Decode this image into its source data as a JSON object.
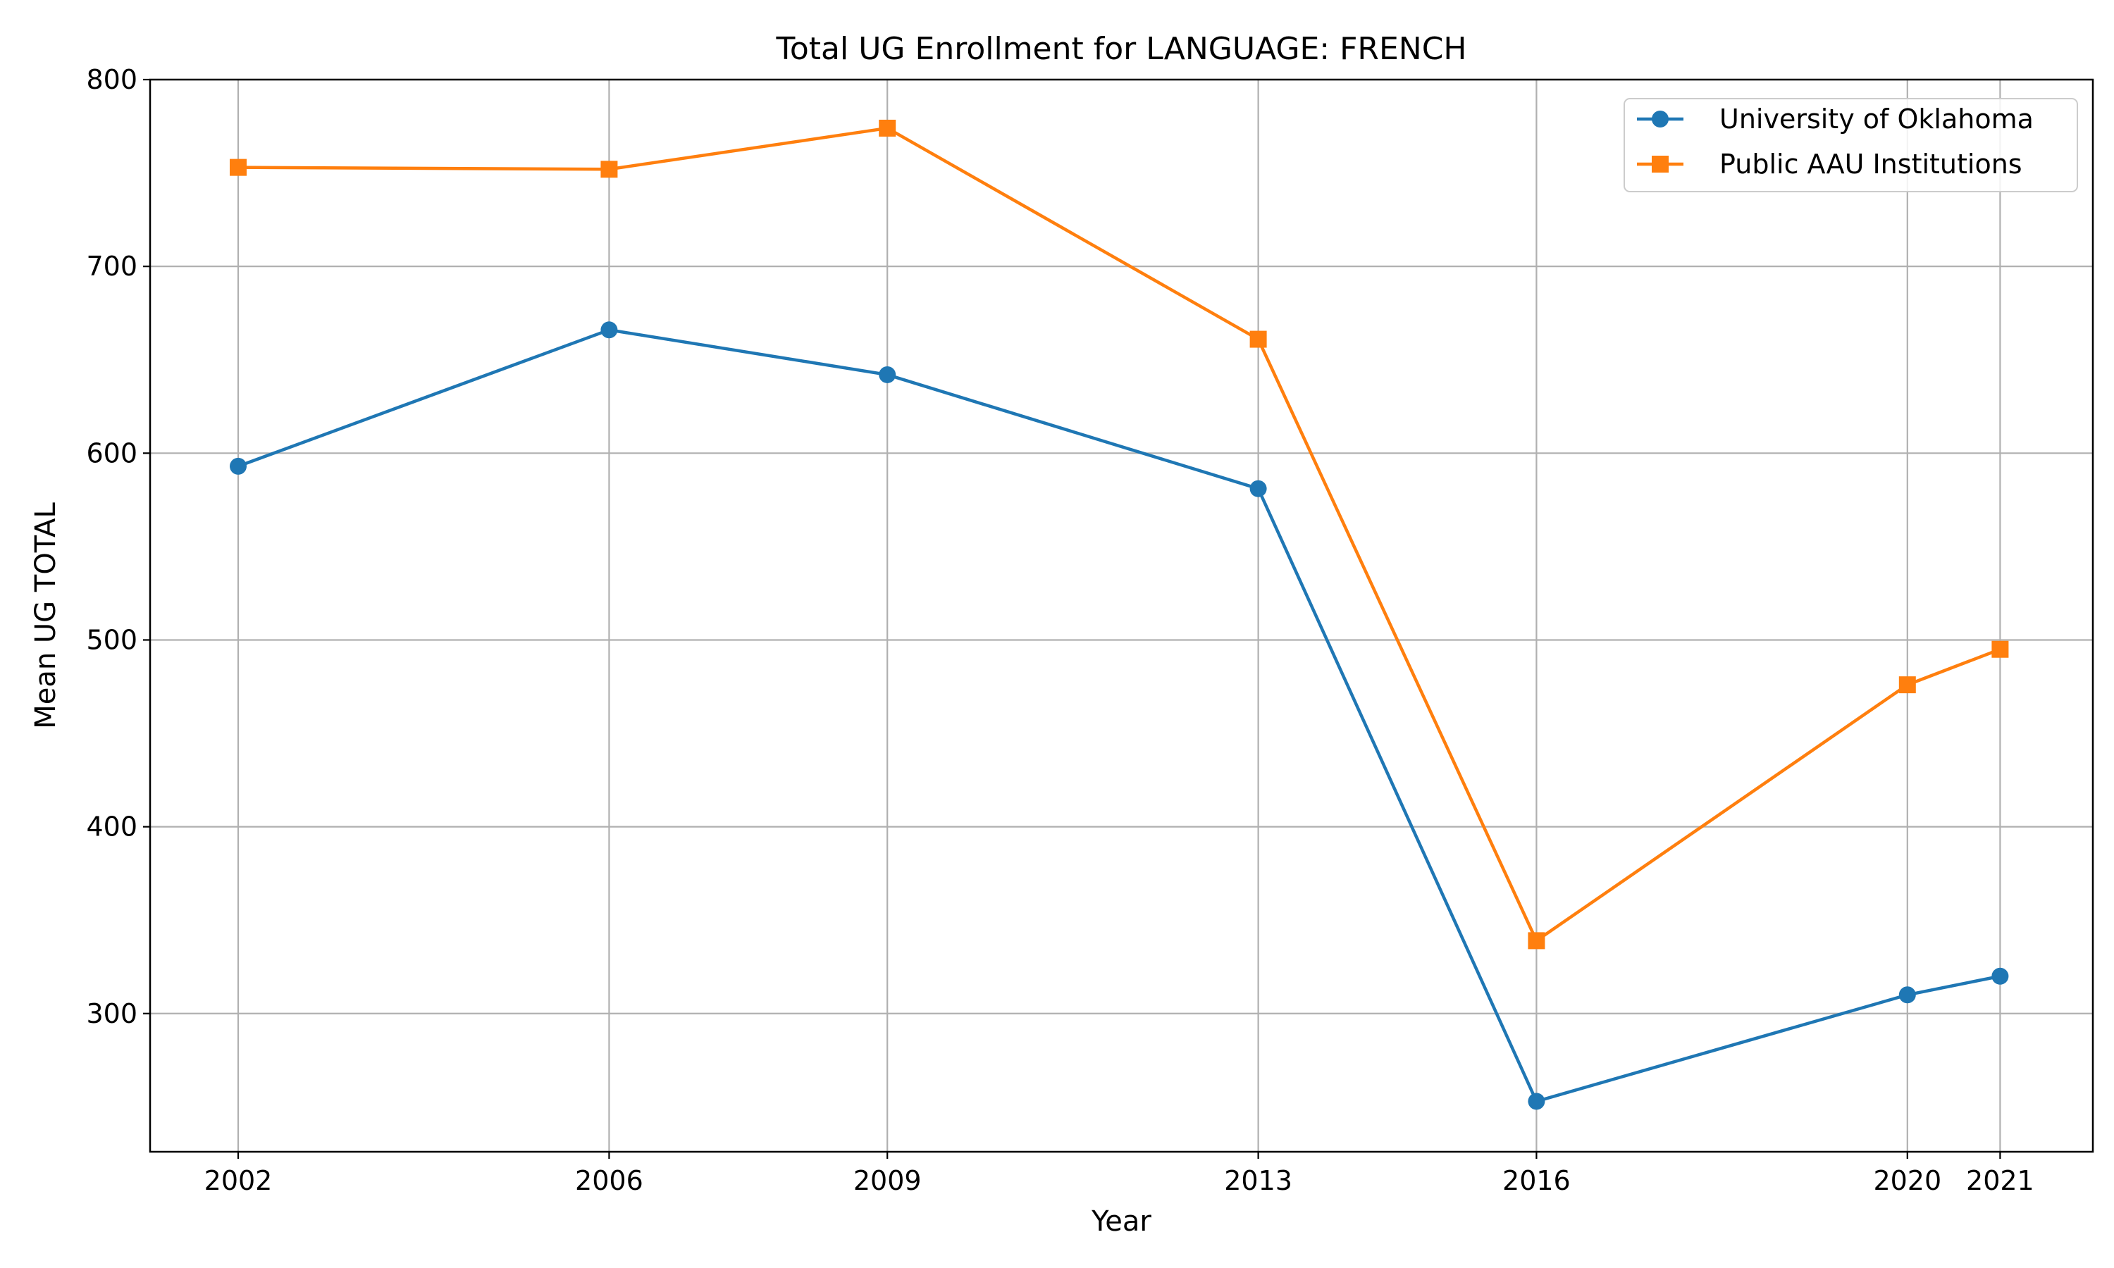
{
  "chart_data": {
    "type": "line",
    "title": "Total UG Enrollment for LANGUAGE: FRENCH",
    "xlabel": "Year",
    "ylabel": "Mean UG TOTAL",
    "x": [
      2002,
      2006,
      2009,
      2013,
      2016,
      2020,
      2021
    ],
    "x_tick_labels": [
      "2002",
      "2006",
      "2009",
      "2013",
      "2016",
      "2020",
      "2021"
    ],
    "xlim": [
      2001.05,
      2022.0
    ],
    "ylim": [
      226,
      800
    ],
    "y_ticks": [
      300,
      400,
      500,
      600,
      700,
      800
    ],
    "y_tick_labels": [
      "300",
      "400",
      "500",
      "600",
      "700",
      "800"
    ],
    "grid": true,
    "legend_position": "top-right",
    "series": [
      {
        "name": "University of Oklahoma",
        "color": "#1f77b4",
        "marker": "circle",
        "values": [
          593,
          666,
          642,
          581,
          253,
          310,
          320
        ]
      },
      {
        "name": "Public AAU Institutions",
        "color": "#ff7f0e",
        "marker": "square",
        "values": [
          753,
          752,
          774,
          661,
          339,
          476,
          495
        ]
      }
    ]
  }
}
